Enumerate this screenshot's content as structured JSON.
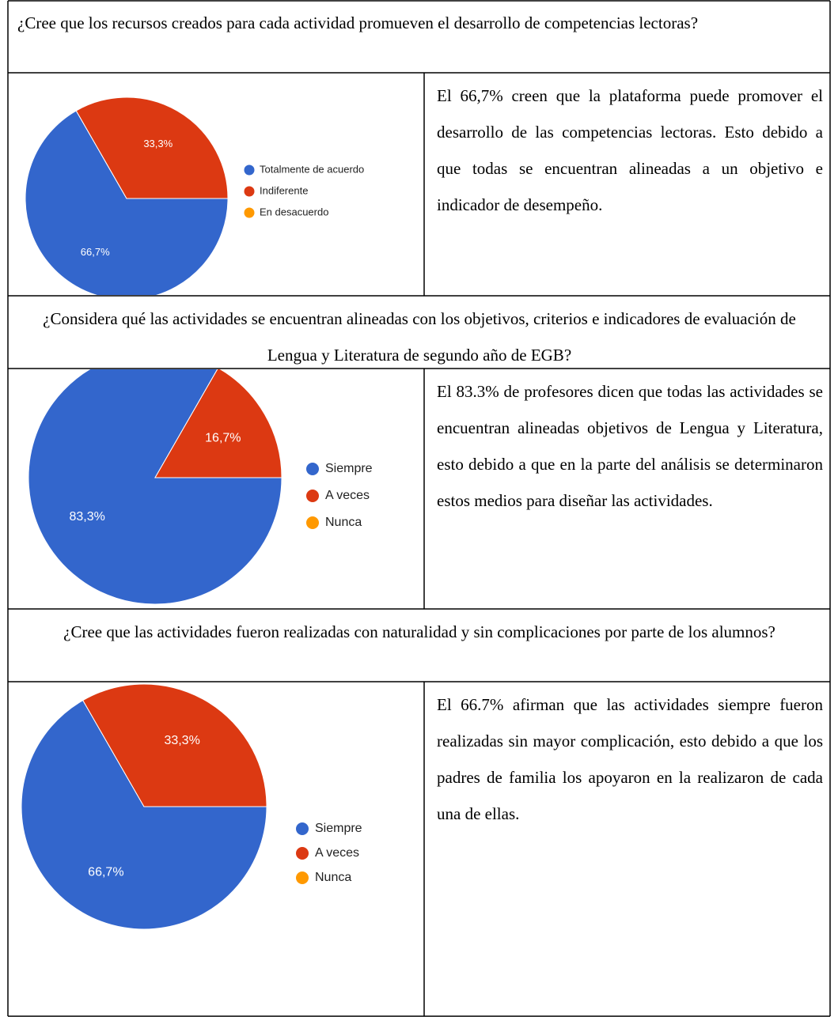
{
  "rows": [
    {
      "question": "¿Cree que los recursos creados para cada actividad promueven el desarrollo de competencias lectoras?",
      "chart": {
        "type": "pie",
        "categories": [
          "Totalmente de acuerdo",
          "Indiferente",
          "En desacuerdo"
        ],
        "values": [
          66.7,
          33.3,
          0
        ],
        "value_labels": [
          "66,7%",
          "33,3%",
          null
        ],
        "colors": [
          "#3366cc",
          "#dc3912",
          "#ff9900"
        ]
      },
      "answer": "El 66,7% creen que la plataforma puede promover el desarrollo de las competencias lectoras. Esto debido a que todas se encuentran alineadas a un objetivo e indicador de desempeño."
    },
    {
      "question": "¿Considera qué las actividades se encuentran alineadas con los objetivos, criterios e indicadores de evaluación de Lengua y Literatura de segundo año de EGB?",
      "chart": {
        "type": "pie",
        "categories": [
          "Siempre",
          "A veces",
          "Nunca"
        ],
        "values": [
          83.3,
          16.7,
          0
        ],
        "value_labels": [
          "83,3%",
          "16,7%",
          null
        ],
        "colors": [
          "#3366cc",
          "#dc3912",
          "#ff9900"
        ]
      },
      "answer": "El 83.3% de profesores dicen que todas las actividades se encuentran alineadas objetivos de Lengua y Literatura, esto debido a que en la parte del análisis se determinaron estos medios para diseñar las actividades."
    },
    {
      "question": "¿Cree que las actividades fueron realizadas con naturalidad y sin complicaciones por parte de los alumnos?",
      "chart": {
        "type": "pie",
        "categories": [
          "Siempre",
          "A veces",
          "Nunca"
        ],
        "values": [
          66.7,
          33.3,
          0
        ],
        "value_labels": [
          "66,7%",
          "33,3%",
          null
        ],
        "colors": [
          "#3366cc",
          "#dc3912",
          "#ff9900"
        ]
      },
      "answer": "El 66.7% afirman que las actividades siempre fueron realizadas sin mayor complicación, esto debido a que los padres de familia los apoyaron en la realizaron de cada una de ellas."
    }
  ]
}
